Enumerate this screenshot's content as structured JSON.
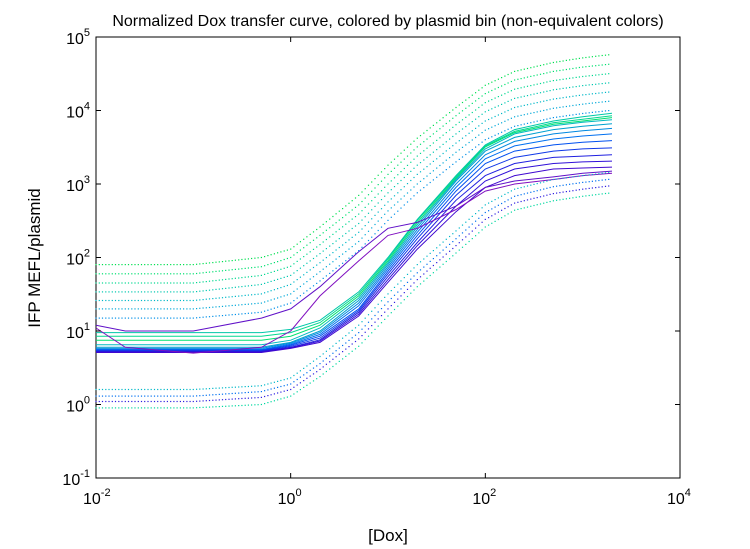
{
  "chart_data": {
    "type": "line",
    "title": "Normalized Dox transfer curve, colored by plasmid bin (non-equivalent colors)",
    "xlabel": "[Dox]",
    "ylabel": "IFP MEFL/plasmid",
    "xscale": "log",
    "yscale": "log",
    "xlim": [
      0.01,
      10000
    ],
    "ylim": [
      0.1,
      100000
    ],
    "x_ticks": [
      {
        "value": 0.01,
        "base": "10",
        "exp": "-2"
      },
      {
        "value": 1,
        "base": "10",
        "exp": "0"
      },
      {
        "value": 100,
        "base": "10",
        "exp": "2"
      },
      {
        "value": 10000,
        "base": "10",
        "exp": "4"
      }
    ],
    "y_ticks": [
      {
        "value": 0.1,
        "base": "10",
        "exp": "-1"
      },
      {
        "value": 1,
        "base": "10",
        "exp": "0"
      },
      {
        "value": 10,
        "base": "10",
        "exp": "1"
      },
      {
        "value": 100,
        "base": "10",
        "exp": "2"
      },
      {
        "value": 1000,
        "base": "10",
        "exp": "3"
      },
      {
        "value": 10000,
        "base": "10",
        "exp": "4"
      },
      {
        "value": 100000,
        "base": "10",
        "exp": "5"
      }
    ],
    "grid": false,
    "legend": "none",
    "x": [
      0.01,
      0.02,
      0.1,
      0.5,
      1,
      2,
      5,
      10,
      20,
      50,
      100,
      200,
      500,
      1000,
      2000
    ],
    "series": [
      {
        "values": [
          7.5,
          7.5,
          7.5,
          7.5,
          8.5,
          12,
          30,
          90,
          300,
          1200,
          3200,
          5000,
          6500,
          7200,
          8000
        ],
        "color": "#00e070",
        "style": "solid"
      },
      {
        "values": [
          8.5,
          8.5,
          8.5,
          8.5,
          9.5,
          13,
          32,
          95,
          320,
          1250,
          3300,
          5200,
          6800,
          7600,
          8500
        ],
        "color": "#00d890",
        "style": "solid"
      },
      {
        "values": [
          9.5,
          9.5,
          9.5,
          9.5,
          10.5,
          14,
          34,
          100,
          330,
          1300,
          3400,
          5500,
          7200,
          8200,
          9200
        ],
        "color": "#00c8a8",
        "style": "solid"
      },
      {
        "values": [
          6.5,
          6.5,
          6.5,
          6.5,
          7.5,
          11,
          28,
          85,
          280,
          1150,
          3000,
          4800,
          6200,
          6900,
          7500
        ],
        "color": "#00b8c0",
        "style": "solid"
      },
      {
        "values": [
          6,
          6,
          6,
          6,
          7,
          10,
          26,
          80,
          260,
          1100,
          2800,
          4300,
          5500,
          6100,
          6600
        ],
        "color": "#00a0d0",
        "style": "solid"
      },
      {
        "values": [
          5.8,
          5.8,
          5.8,
          5.8,
          6.8,
          9.5,
          24,
          75,
          240,
          1000,
          2500,
          3800,
          4800,
          5300,
          5700
        ],
        "color": "#0088e0",
        "style": "solid"
      },
      {
        "values": [
          5.6,
          5.6,
          5.6,
          5.6,
          6.6,
          9,
          22,
          70,
          220,
          900,
          2200,
          3300,
          4100,
          4500,
          4800
        ],
        "color": "#0070f0",
        "style": "solid"
      },
      {
        "values": [
          5.5,
          5.5,
          5.5,
          5.5,
          6.4,
          8.5,
          20,
          65,
          200,
          800,
          1900,
          2800,
          3400,
          3700,
          3900
        ],
        "color": "#0050f0",
        "style": "solid"
      },
      {
        "values": [
          5.4,
          5.4,
          5.4,
          5.4,
          6.2,
          8,
          19,
          60,
          180,
          700,
          1600,
          2300,
          2800,
          3000,
          3100
        ],
        "color": "#1038e8",
        "style": "solid"
      },
      {
        "values": [
          5.3,
          5.3,
          5.3,
          5.3,
          6,
          7.6,
          18,
          55,
          160,
          600,
          1300,
          1900,
          2300,
          2400,
          2500
        ],
        "color": "#2020e0",
        "style": "solid"
      },
      {
        "values": [
          5.2,
          5.2,
          5.2,
          5.2,
          5.9,
          7.3,
          17,
          50,
          145,
          500,
          1100,
          1600,
          1900,
          2000,
          2050
        ],
        "color": "#3010d8",
        "style": "solid"
      },
      {
        "values": [
          5.1,
          5.1,
          5.1,
          5.1,
          5.8,
          7,
          16,
          46,
          130,
          420,
          900,
          1300,
          1600,
          1650,
          1700
        ],
        "color": "#4008d0",
        "style": "solid"
      },
      {
        "values": [
          12,
          10,
          10,
          15,
          20,
          40,
          120,
          250,
          300,
          500,
          900,
          1100,
          1250,
          1400,
          1500
        ],
        "color": "#6010c8",
        "style": "solid"
      },
      {
        "values": [
          11,
          6,
          5,
          6,
          10,
          30,
          90,
          200,
          250,
          450,
          800,
          1000,
          1150,
          1300,
          1400
        ],
        "color": "#8010c0",
        "style": "solid"
      },
      {
        "values": [
          80,
          80,
          80,
          100,
          130,
          260,
          700,
          1800,
          4200,
          11000,
          22000,
          34000,
          45000,
          52000,
          58000
        ],
        "color": "#00e050",
        "style": "dotted"
      },
      {
        "values": [
          60,
          60,
          60,
          75,
          100,
          200,
          520,
          1350,
          3200,
          8500,
          17000,
          26000,
          34000,
          39000,
          43000
        ],
        "color": "#00e070",
        "style": "dotted"
      },
      {
        "values": [
          45,
          45,
          45,
          57,
          76,
          150,
          390,
          1000,
          2400,
          6400,
          12800,
          19500,
          25500,
          29000,
          32000
        ],
        "color": "#00d890",
        "style": "dotted"
      },
      {
        "values": [
          34,
          34,
          34,
          43,
          57,
          113,
          290,
          760,
          1800,
          4800,
          9600,
          14600,
          19100,
          21800,
          24000
        ],
        "color": "#00c8b0",
        "style": "dotted"
      },
      {
        "values": [
          26,
          26,
          26,
          32,
          43,
          85,
          220,
          570,
          1350,
          3600,
          7200,
          11000,
          14300,
          16300,
          18000
        ],
        "color": "#00b8c8",
        "style": "dotted"
      },
      {
        "values": [
          20,
          20,
          20,
          24,
          32,
          64,
          165,
          430,
          1000,
          2700,
          5400,
          8200,
          10700,
          12200,
          13500
        ],
        "color": "#00a8d8",
        "style": "dotted"
      },
      {
        "values": [
          15,
          15,
          15,
          18,
          24,
          48,
          124,
          320,
          760,
          2000,
          4000,
          6100,
          8000,
          9100,
          10100
        ],
        "color": "#0090e8",
        "style": "dotted"
      },
      {
        "values": [
          1.6,
          1.6,
          1.6,
          1.8,
          2.3,
          4.5,
          12,
          32,
          80,
          230,
          520,
          850,
          1150,
          1300,
          1450
        ],
        "color": "#00b8c8",
        "style": "dotted"
      },
      {
        "values": [
          1.3,
          1.3,
          1.3,
          1.5,
          1.9,
          3.6,
          9.5,
          25,
          62,
          180,
          410,
          680,
          920,
          1050,
          1170
        ],
        "color": "#0070f0",
        "style": "dotted"
      },
      {
        "values": [
          1.1,
          1.1,
          1.1,
          1.25,
          1.6,
          3,
          7.8,
          20,
          50,
          145,
          330,
          550,
          740,
          850,
          950
        ],
        "color": "#3020e0",
        "style": "dotted"
      },
      {
        "values": [
          0.9,
          0.9,
          0.9,
          1.0,
          1.3,
          2.4,
          6.2,
          16,
          40,
          115,
          260,
          440,
          590,
          680,
          760
        ],
        "color": "#00d8a0",
        "style": "dotted"
      }
    ]
  }
}
